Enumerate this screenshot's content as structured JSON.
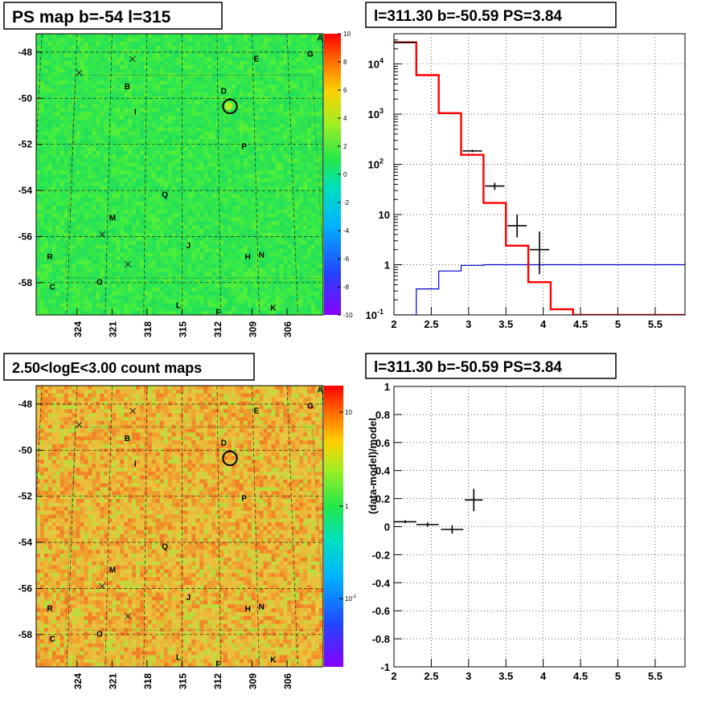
{
  "panels": {
    "ps_map_title": "PS map b=-54 l=315",
    "spectrum_title": "l=311.30 b=-50.59 PS=3.84",
    "count_map_title": "2.50<logE<3.00 count maps",
    "residual_title": "l=311.30 b=-50.59 PS=3.84"
  },
  "colors": {
    "map_green": "#33e84a",
    "counts_orange": "#e8b43a",
    "model_red": "#ff0000",
    "background_blue": "#0000cc",
    "data_black": "#000000"
  },
  "sky_maps": {
    "lon_ticks": [
      "324",
      "321",
      "318",
      "315",
      "312",
      "309",
      "306"
    ],
    "lat_ticks": [
      "-48",
      "-50",
      "-52",
      "-54",
      "-56",
      "-58"
    ],
    "lon_range": [
      327.5,
      302.9
    ],
    "lat_range": [
      -59.4,
      -47.2
    ],
    "source_labels": [
      {
        "label": "A",
        "l": 303.2,
        "b": -47.5
      },
      {
        "label": "B",
        "l": 319.6,
        "b": -49.6
      },
      {
        "label": "C",
        "l": 325.2,
        "b": -58.3
      },
      {
        "label": "D",
        "l": 311.5,
        "b": -49.8
      },
      {
        "label": "E",
        "l": 308.7,
        "b": -48.4
      },
      {
        "label": "F",
        "l": 312.2,
        "b": -59.4
      },
      {
        "label": "G",
        "l": 304.1,
        "b": -48.2
      },
      {
        "label": "H",
        "l": 309.8,
        "b": -57.0
      },
      {
        "label": "I",
        "l": 318.9,
        "b": -50.7
      },
      {
        "label": "J",
        "l": 314.5,
        "b": -56.5
      },
      {
        "label": "K",
        "l": 307.9,
        "b": -59.2
      },
      {
        "label": "L",
        "l": 315.3,
        "b": -59.1
      },
      {
        "label": "M",
        "l": 320.6,
        "b": -55.3
      },
      {
        "label": "N",
        "l": 308.7,
        "b": -56.9
      },
      {
        "label": "O",
        "l": 321.5,
        "b": -58.1
      },
      {
        "label": "P",
        "l": 309.9,
        "b": -52.2
      },
      {
        "label": "Q",
        "l": 316.4,
        "b": -54.3
      },
      {
        "label": "R",
        "l": 325.5,
        "b": -57.0
      }
    ],
    "x_markers": [
      {
        "l": 323.7,
        "b": -48.9
      },
      {
        "l": 319.2,
        "b": -48.3
      },
      {
        "l": 321.4,
        "b": -55.9
      },
      {
        "l": 319.3,
        "b": -57.2
      }
    ],
    "circle": {
      "l": 311.0,
      "b": -50.35,
      "radius_deg": 0.5
    }
  },
  "chart_data": [
    {
      "type": "heatmap",
      "title": "PS map b=-54 l=315",
      "xlabel": "",
      "ylabel": "",
      "colorbar": {
        "range": [
          -10,
          10
        ],
        "ticks": [
          "10",
          "8",
          "6",
          "4",
          "2",
          "0",
          "-2",
          "-4",
          "-6",
          "-8",
          "-10"
        ]
      },
      "dominant_value": 0.5,
      "hotspot": {
        "source": "D",
        "value": 3.84
      }
    },
    {
      "type": "line",
      "title": "l=311.30 b=-50.59 PS=3.84",
      "xlabel": "",
      "ylabel": "",
      "xlim": [
        2,
        5.9
      ],
      "ylim": [
        0.1,
        40000
      ],
      "yscale": "log",
      "grid": true,
      "x_ticks": [
        "2",
        "2.5",
        "3",
        "3.5",
        "4",
        "4.5",
        "5",
        "5.5"
      ],
      "y_ticks": [
        {
          "v": 0.1,
          "base": "10",
          "exp": "-1"
        },
        {
          "v": 1,
          "base": "1",
          "exp": ""
        },
        {
          "v": 10,
          "base": "10",
          "exp": ""
        },
        {
          "v": 100,
          "base": "10",
          "exp": "2"
        },
        {
          "v": 1000,
          "base": "10",
          "exp": "3"
        },
        {
          "v": 10000,
          "base": "10",
          "exp": "4"
        }
      ],
      "series": [
        {
          "role": "total model",
          "color": "#ff0000",
          "bin_edges": [
            2,
            2.3,
            2.6,
            2.9,
            3.2,
            3.5,
            3.8,
            4.1,
            4.4,
            5.9
          ],
          "values": [
            27000,
            6000,
            1050,
            155,
            17,
            2.4,
            0.45,
            0.13,
            0.1
          ]
        },
        {
          "role": "background",
          "color": "#0000cc",
          "bin_edges": [
            2,
            2.3,
            2.6,
            2.9,
            3.2,
            5.9
          ],
          "values": [
            0.1,
            0.33,
            0.75,
            0.97,
            1.0
          ]
        },
        {
          "role": "data",
          "color": "#000000",
          "points": [
            {
              "x": 2.15,
              "y": 27000,
              "xerr": 0.15,
              "ylo": 26500,
              "yhi": 27500
            },
            {
              "x": 3.05,
              "y": 185,
              "xerr": 0.13,
              "ylo": 175,
              "yhi": 195
            },
            {
              "x": 3.35,
              "y": 37,
              "xerr": 0.13,
              "ylo": 31,
              "yhi": 43
            },
            {
              "x": 3.65,
              "y": 6,
              "xerr": 0.13,
              "ylo": 3.5,
              "yhi": 10
            },
            {
              "x": 3.95,
              "y": 2,
              "xerr": 0.13,
              "ylo": 0.65,
              "yhi": 4.6
            }
          ]
        }
      ]
    },
    {
      "type": "heatmap",
      "title": "2.50<logE<3.00 count maps",
      "xlabel": "",
      "ylabel": "",
      "colorbar": {
        "scale": "log",
        "ticks": [
          "10",
          "1",
          "10^-1"
        ]
      },
      "dominant_value": 4
    },
    {
      "type": "scatter",
      "title": "l=311.30 b=-50.59 PS=3.84",
      "xlabel": "",
      "ylabel": "(data-model)/model",
      "xlim": [
        2,
        5.9
      ],
      "ylim": [
        -1,
        1
      ],
      "grid": true,
      "x_ticks": [
        "2",
        "2.5",
        "3",
        "3.5",
        "4",
        "4.5",
        "5",
        "5.5"
      ],
      "y_ticks": [
        "1",
        "0.8",
        "0.6",
        "0.4",
        "0.2",
        "0",
        "-0.2",
        "-0.4",
        "-0.6",
        "-0.8",
        "-1"
      ],
      "points": [
        {
          "x": 2.15,
          "y": 0.035,
          "xerr": 0.15,
          "yerr": 0.01
        },
        {
          "x": 2.45,
          "y": 0.015,
          "xerr": 0.15,
          "yerr": 0.015
        },
        {
          "x": 2.78,
          "y": -0.02,
          "xerr": 0.15,
          "yerr": 0.03
        },
        {
          "x": 3.07,
          "y": 0.19,
          "xerr": 0.12,
          "yerr": 0.08
        }
      ]
    }
  ]
}
